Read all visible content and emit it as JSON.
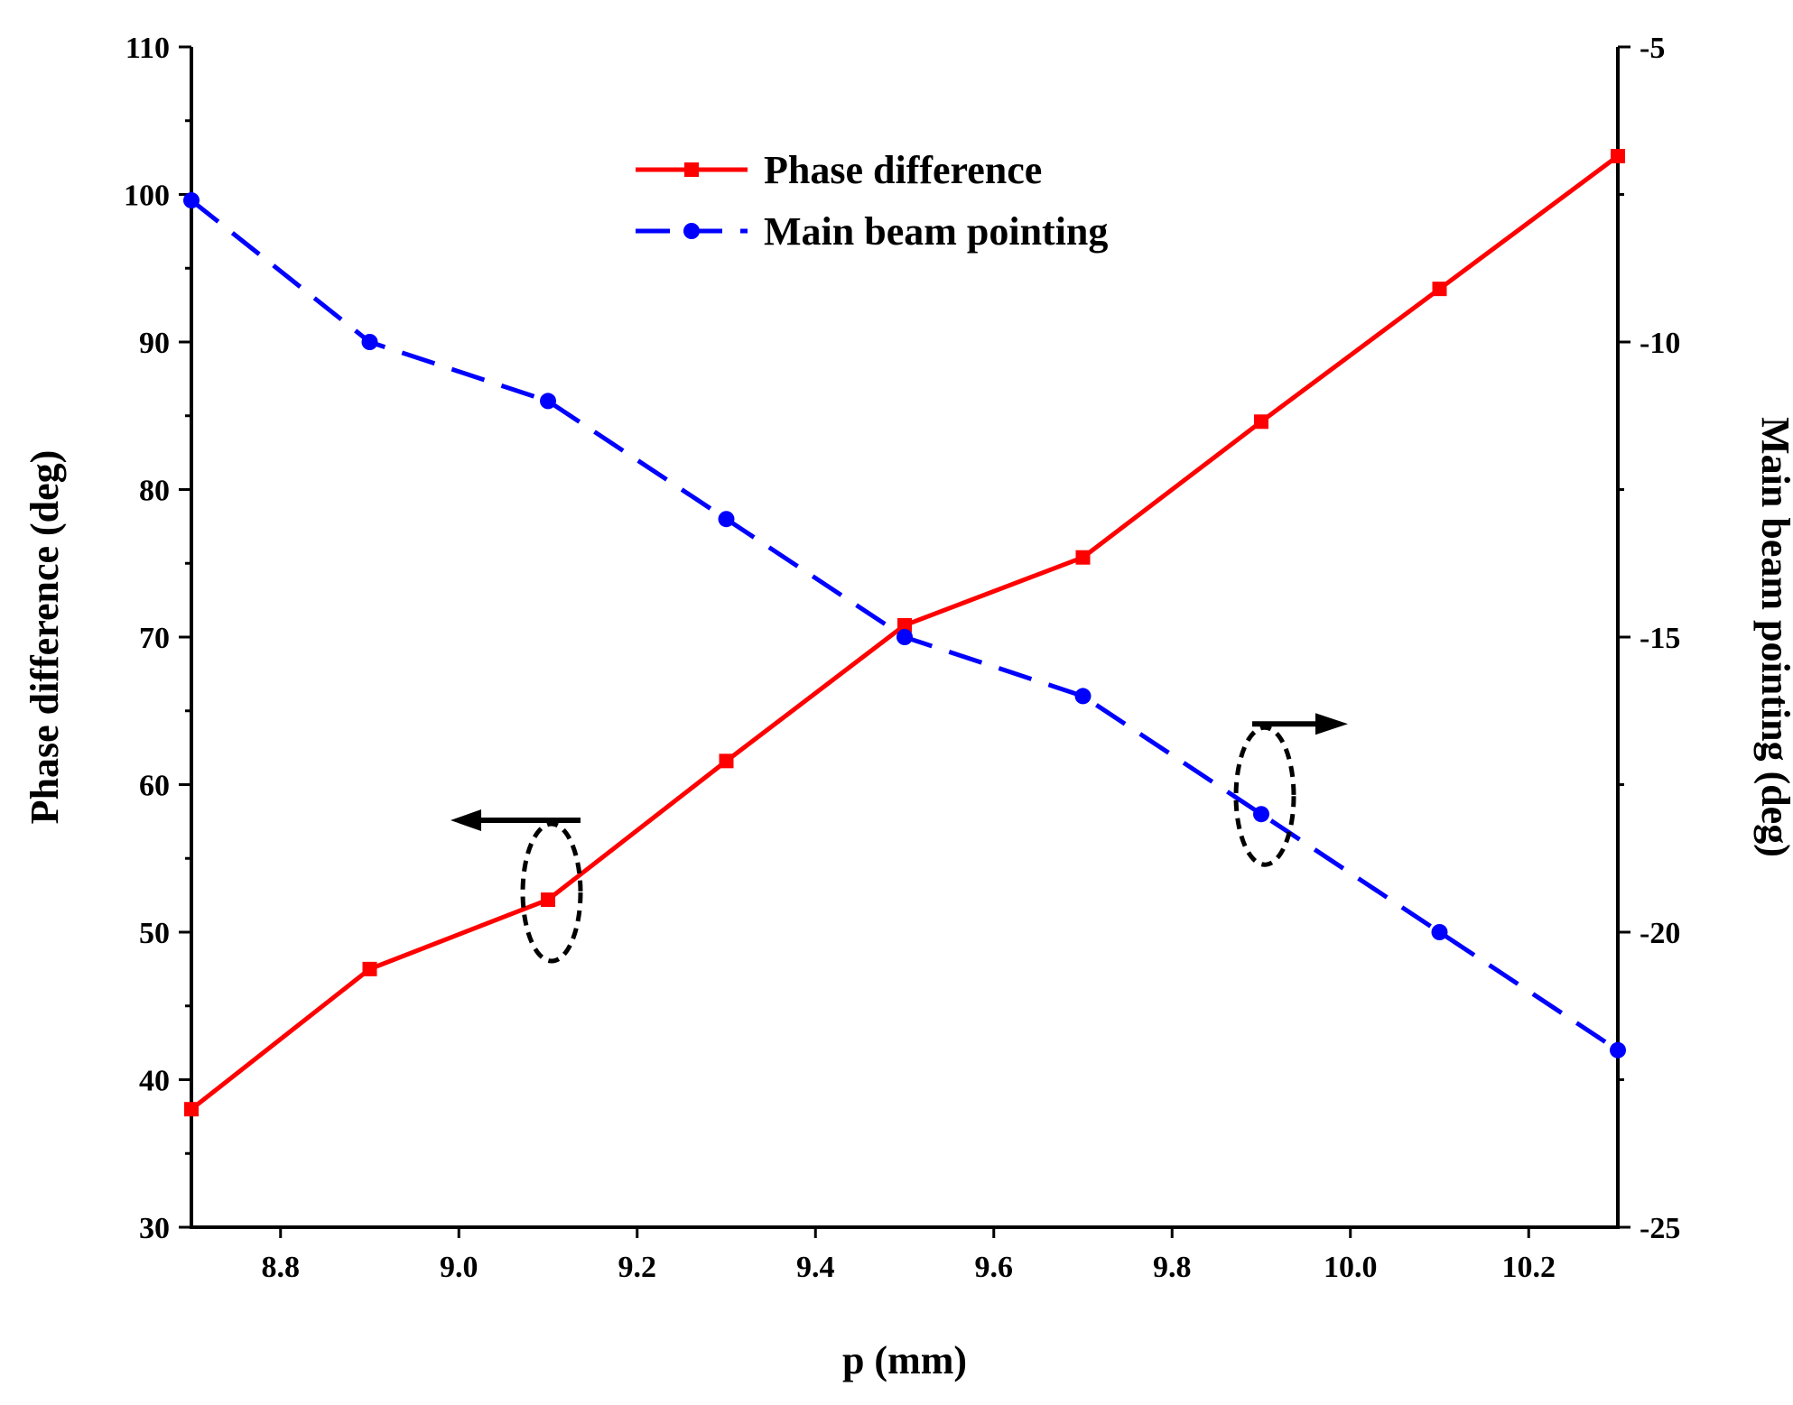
{
  "chart_data": {
    "type": "line",
    "x": [
      8.7,
      8.9,
      9.1,
      9.3,
      9.5,
      9.7,
      9.9,
      10.1,
      10.3
    ],
    "xlabel": "p (mm)",
    "xlim": [
      8.7,
      10.3
    ],
    "xticks": [
      "8.8",
      "9.0",
      "9.2",
      "9.4",
      "9.6",
      "9.8",
      "10.0",
      "10.2"
    ],
    "ylabel_left": "Phase difference  (deg)",
    "ylim_left": [
      30,
      110
    ],
    "yticks_left": [
      "30",
      "40",
      "50",
      "60",
      "70",
      "80",
      "90",
      "100",
      "110"
    ],
    "ylabel_right": "Main beam pointing (deg)",
    "ylim_right": [
      -25,
      -5
    ],
    "yticks_right": [
      "-25",
      "-20",
      "-15",
      "-10",
      "-5"
    ],
    "series": [
      {
        "name": "Phase difference",
        "axis": "left",
        "color": "#ff0000",
        "style": "solid",
        "marker": "square",
        "values": [
          38.0,
          47.5,
          52.2,
          61.6,
          70.8,
          75.4,
          84.6,
          93.6,
          102.6
        ]
      },
      {
        "name": "Main beam pointing",
        "axis": "right",
        "color": "#0000ff",
        "style": "dashed",
        "marker": "circle",
        "values": [
          -7.6,
          -10.0,
          -11.0,
          -13.0,
          -15.0,
          -16.0,
          -18.0,
          -20.0,
          -22.0
        ]
      }
    ],
    "annotations": [
      {
        "kind": "ellipse-arrow",
        "target_series": "Phase difference",
        "at_x": 9.1,
        "arrow_direction": "left"
      },
      {
        "kind": "ellipse-arrow",
        "target_series": "Main beam pointing",
        "at_x": 9.9,
        "arrow_direction": "right"
      }
    ]
  }
}
